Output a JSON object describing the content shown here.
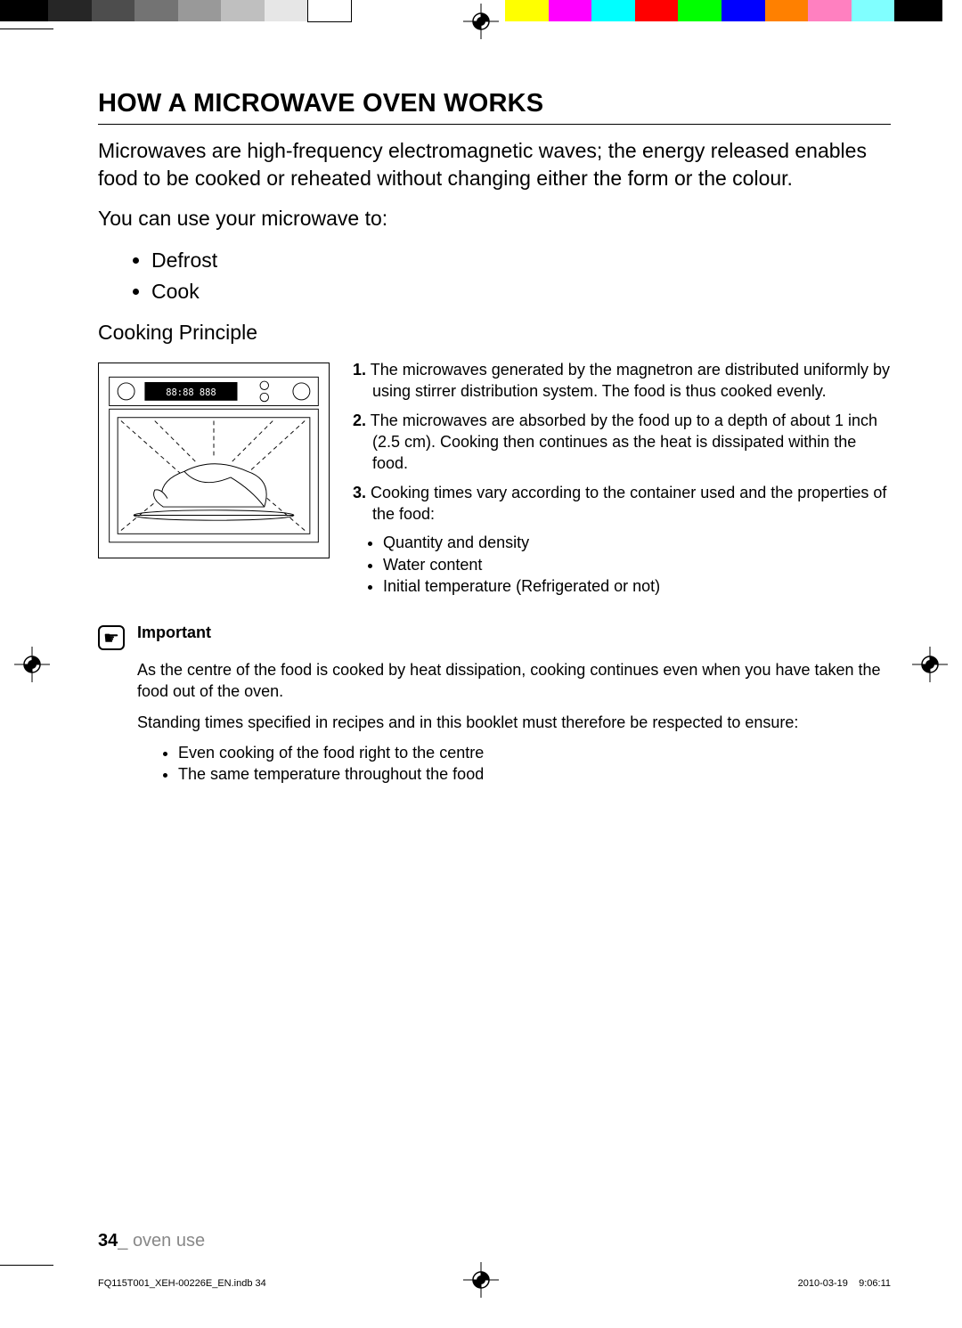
{
  "colorbar": [
    {
      "w": 5.0,
      "c": "#000000"
    },
    {
      "w": 4.5,
      "c": "#262626"
    },
    {
      "w": 4.5,
      "c": "#4d4d4d"
    },
    {
      "w": 4.5,
      "c": "#737373"
    },
    {
      "w": 4.5,
      "c": "#999999"
    },
    {
      "w": 4.5,
      "c": "#bfbfbf"
    },
    {
      "w": 4.5,
      "c": "#e6e6e6"
    },
    {
      "w": 4.5,
      "c": "#ffffff"
    },
    {
      "w": 16,
      "c": "transparent"
    },
    {
      "w": 4.5,
      "c": "#ffff00"
    },
    {
      "w": 4.5,
      "c": "#ff00ff"
    },
    {
      "w": 4.5,
      "c": "#00ffff"
    },
    {
      "w": 4.5,
      "c": "#ff0000"
    },
    {
      "w": 4.5,
      "c": "#00ff00"
    },
    {
      "w": 4.5,
      "c": "#0000ff"
    },
    {
      "w": 4.5,
      "c": "#ff8000"
    },
    {
      "w": 4.5,
      "c": "#ff80c0"
    },
    {
      "w": 4.5,
      "c": "#80ffff"
    },
    {
      "w": 5.0,
      "c": "#000000"
    }
  ],
  "title": "HOW A MICROWAVE OVEN WORKS",
  "intro": "Microwaves are high-frequency electromagnetic waves; the energy released enables food to be cooked or reheated without changing either the form or the colour.",
  "lead": "You can use your microwave to:",
  "uses": [
    "Defrost",
    "Cook"
  ],
  "subhead": "Cooking Principle",
  "principleItems": [
    "The microwaves generated by the magnetron are distributed uniformly by using stirrer distribution system. The food is thus cooked evenly.",
    "The microwaves are absorbed by the food up to a depth of about 1 inch (2.5 cm). Cooking then continues as the heat is dissipated within the food.",
    "Cooking times vary according to the container used and the properties of the food:"
  ],
  "principleSubBullets": [
    "Quantity and density",
    "Water content",
    "Initial temperature (Refrigerated or not)"
  ],
  "important": {
    "label": "Important",
    "p1": "As the centre of the food is cooked by heat dissipation, cooking continues even when you have taken the food out of the oven.",
    "p2": "Standing times specified in recipes and in this booklet must therefore be respected to ensure:",
    "bullets": [
      "Even cooking of the food right to the centre",
      "The same temperature throughout the food"
    ]
  },
  "footer": {
    "pageNum": "34",
    "sep": "_ ",
    "section": "oven use"
  },
  "printline": {
    "file": "FQ115T001_XEH-00226E_EN.indb   34",
    "date": "2010-03-19",
    "time": "9:06:11"
  }
}
